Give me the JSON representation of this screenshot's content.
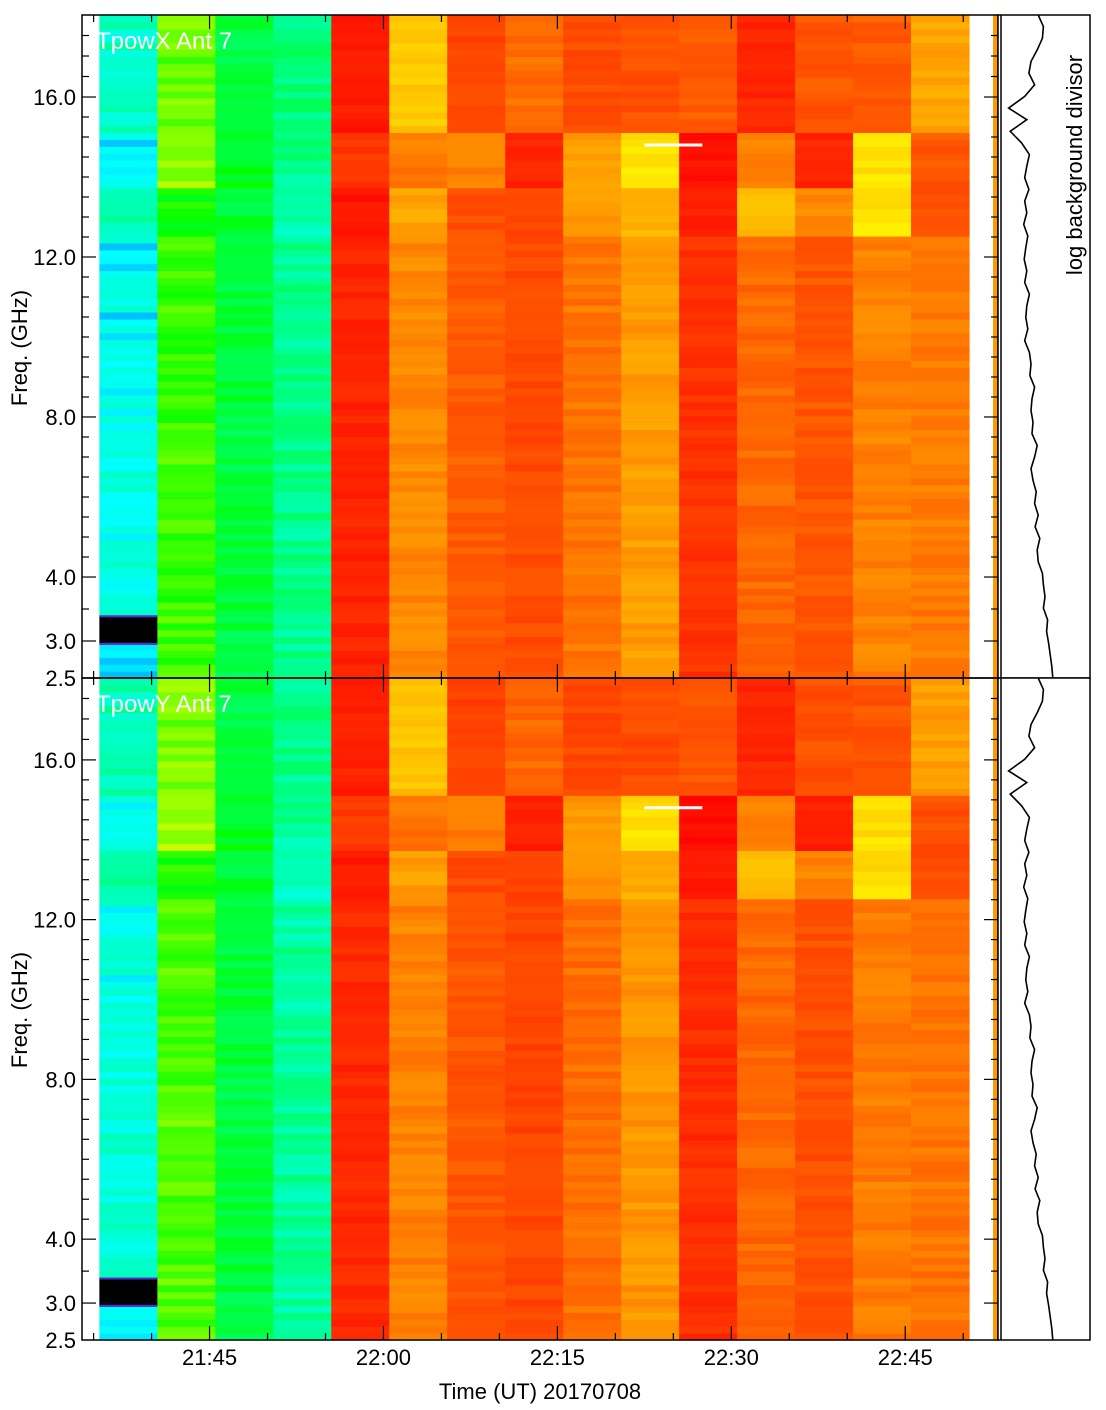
{
  "chart_data": {
    "type": "heatmap",
    "xlabel": "Time (UT) 20170708",
    "ylabel": "Freq. (GHz)",
    "side_label": "log background divisor",
    "x_ticks": [
      "21:45",
      "22:00",
      "22:15",
      "22:30",
      "22:45"
    ],
    "y_ticks": [
      "16.0",
      "12.0",
      "8.0",
      "4.0",
      "3.0",
      "2.5"
    ],
    "x_range_minutes": [
      -26,
      53
    ],
    "y_range_ghz": [
      2.5,
      18
    ],
    "colormap": "rainbow",
    "time_columns": [
      "21:38",
      "21:43",
      "21:48",
      "21:53",
      "21:58",
      "22:03",
      "22:08",
      "22:13",
      "22:18",
      "22:23",
      "22:28",
      "22:33",
      "22:38",
      "22:43",
      "22:48"
    ],
    "panels": [
      {
        "title": "TpowX Ant 7",
        "column_levels": [
          0.25,
          0.43,
          0.36,
          0.31,
          0.93,
          0.75,
          0.82,
          0.85,
          0.78,
          0.72,
          0.9,
          0.8,
          0.83,
          0.76,
          0.77
        ],
        "column_band_offsets": [
          [
            0.03,
            0.0,
            0.04
          ],
          [
            0.02,
            0.04,
            -0.03
          ],
          [
            0.0,
            0.02,
            0.01
          ],
          [
            0.01,
            0.0,
            -0.03
          ],
          [
            0.02,
            -0.04,
            0.03
          ],
          [
            -0.1,
            0.02,
            -0.04
          ],
          [
            0.04,
            -0.06,
            0.02
          ],
          [
            -0.06,
            0.08,
            0.02
          ],
          [
            0.07,
            -0.06,
            -0.06
          ],
          [
            0.12,
            -0.12,
            -0.04
          ],
          [
            -0.08,
            0.06,
            0.04
          ],
          [
            0.12,
            -0.04,
            -0.14
          ],
          [
            0.0,
            0.1,
            -0.08
          ],
          [
            0.06,
            -0.16,
            -0.16
          ],
          [
            -0.06,
            0.06,
            0.06
          ]
        ],
        "black_block_ghz": [
          2.95,
          3.4
        ]
      },
      {
        "title": "TpowY Ant 7",
        "column_levels": [
          0.26,
          0.44,
          0.36,
          0.3,
          0.92,
          0.76,
          0.83,
          0.86,
          0.79,
          0.73,
          0.91,
          0.8,
          0.84,
          0.77,
          0.78
        ],
        "column_band_offsets": [
          [
            0.03,
            0.0,
            0.04
          ],
          [
            0.02,
            0.04,
            -0.03
          ],
          [
            0.0,
            0.02,
            0.01
          ],
          [
            0.01,
            0.0,
            -0.03
          ],
          [
            0.02,
            -0.04,
            0.03
          ],
          [
            -0.1,
            0.02,
            -0.04
          ],
          [
            0.04,
            -0.06,
            0.02
          ],
          [
            -0.06,
            0.08,
            0.02
          ],
          [
            0.07,
            -0.06,
            -0.06
          ],
          [
            0.12,
            -0.12,
            -0.04
          ],
          [
            -0.08,
            0.06,
            0.04
          ],
          [
            0.12,
            -0.04,
            -0.14
          ],
          [
            0.0,
            0.1,
            -0.08
          ],
          [
            0.06,
            -0.16,
            -0.16
          ],
          [
            -0.06,
            0.06,
            0.06
          ]
        ],
        "black_block_ghz": [
          2.95,
          3.4
        ]
      }
    ],
    "white_marker": {
      "time": "22:25",
      "freq_ghz": 14.8
    },
    "background_divisor_profile": [
      0.62,
      0.72,
      0.7,
      0.6,
      0.48,
      0.44,
      0.55,
      0.36,
      0.05,
      0.4,
      0.08,
      0.3,
      0.45,
      0.4,
      0.36,
      0.44,
      0.36,
      0.4,
      0.34,
      0.42,
      0.38,
      0.35,
      0.4,
      0.36,
      0.45,
      0.4,
      0.38,
      0.42,
      0.36,
      0.45,
      0.48,
      0.46,
      0.55,
      0.5,
      0.48,
      0.52,
      0.5,
      0.6,
      0.55,
      0.48,
      0.52,
      0.58,
      0.55,
      0.62,
      0.56,
      0.65,
      0.6,
      0.62,
      0.7,
      0.72,
      0.75,
      0.72,
      0.8,
      0.78,
      0.82,
      0.85,
      0.88,
      0.9
    ]
  }
}
